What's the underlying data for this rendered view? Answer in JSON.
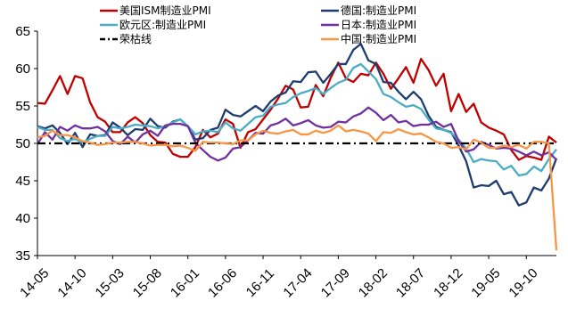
{
  "chart_data": {
    "type": "line",
    "title": "",
    "xlabel": "",
    "ylabel": "",
    "ylim": [
      35,
      65
    ],
    "yticks": [
      35,
      40,
      45,
      50,
      55,
      60,
      65
    ],
    "x": [
      "14-05",
      "14-06",
      "14-07",
      "14-08",
      "14-09",
      "14-10",
      "14-11",
      "14-12",
      "15-01",
      "15-02",
      "15-03",
      "15-04",
      "15-05",
      "15-06",
      "15-07",
      "15-08",
      "15-09",
      "15-10",
      "15-11",
      "15-12",
      "16-01",
      "16-02",
      "16-03",
      "16-04",
      "16-05",
      "16-06",
      "16-07",
      "16-08",
      "16-09",
      "16-10",
      "16-11",
      "16-12",
      "17-01",
      "17-02",
      "17-03",
      "17-04",
      "17-05",
      "17-06",
      "17-07",
      "17-08",
      "17-09",
      "17-10",
      "17-11",
      "17-12",
      "18-01",
      "18-02",
      "18-03",
      "18-04",
      "18-05",
      "18-06",
      "18-07",
      "18-08",
      "18-09",
      "18-10",
      "18-11",
      "18-12",
      "19-01",
      "19-02",
      "19-03",
      "19-04",
      "19-05",
      "19-06",
      "19-07",
      "19-08",
      "19-09",
      "19-10",
      "19-11",
      "19-12",
      "20-01",
      "20-02"
    ],
    "x_tick_labels": [
      "14-05",
      "14-10",
      "15-03",
      "15-08",
      "16-01",
      "16-06",
      "16-11",
      "17-04",
      "17-09",
      "18-02",
      "18-07",
      "18-12",
      "19-05",
      "19-10"
    ],
    "grid": false,
    "legend_position": "top",
    "series": [
      {
        "name": "美国ISM制造业PMI",
        "color": "#c00000",
        "style": "solid",
        "values": [
          55.4,
          55.3,
          57.1,
          59.0,
          56.6,
          59.0,
          58.7,
          55.5,
          53.5,
          52.9,
          51.5,
          51.5,
          52.8,
          53.5,
          52.7,
          51.1,
          50.2,
          50.1,
          48.6,
          48.2,
          48.2,
          49.5,
          51.8,
          50.8,
          51.3,
          53.2,
          52.6,
          49.4,
          51.5,
          51.9,
          53.2,
          54.5,
          56.0,
          57.7,
          57.2,
          54.8,
          54.9,
          57.8,
          56.3,
          58.8,
          60.8,
          58.7,
          58.2,
          59.3,
          59.1,
          60.8,
          59.3,
          57.3,
          58.7,
          60.2,
          58.1,
          61.3,
          59.8,
          57.7,
          59.3,
          54.3,
          56.6,
          54.2,
          55.3,
          52.8,
          52.1,
          51.7,
          51.2,
          49.1,
          47.8,
          48.3,
          48.1,
          47.8,
          50.9,
          50.1
        ]
      },
      {
        "name": "德国:制造业PMI",
        "color": "#1f3c6e",
        "style": "solid",
        "values": [
          52.3,
          52.0,
          52.4,
          51.4,
          49.9,
          51.4,
          49.5,
          51.2,
          51.0,
          51.1,
          52.8,
          52.1,
          51.1,
          51.9,
          51.8,
          53.3,
          52.3,
          52.1,
          52.9,
          53.2,
          52.3,
          50.5,
          50.7,
          51.8,
          52.1,
          54.5,
          53.8,
          53.6,
          54.3,
          55.0,
          54.3,
          55.6,
          56.4,
          56.8,
          58.3,
          58.2,
          59.5,
          59.6,
          58.1,
          59.3,
          60.6,
          60.6,
          62.5,
          63.3,
          61.1,
          60.6,
          58.2,
          58.1,
          56.9,
          55.9,
          56.9,
          55.9,
          53.7,
          52.2,
          51.8,
          51.5,
          49.7,
          47.6,
          44.1,
          44.4,
          44.3,
          45.0,
          43.2,
          43.5,
          41.7,
          42.1,
          44.1,
          43.7,
          45.3,
          48.0
        ]
      },
      {
        "name": "欧元区:制造业PMI",
        "color": "#4bacc6",
        "style": "solid",
        "values": [
          52.2,
          51.8,
          51.8,
          50.7,
          50.3,
          50.6,
          50.1,
          50.6,
          51.0,
          51.0,
          52.2,
          52.0,
          52.2,
          52.5,
          52.4,
          52.3,
          52.0,
          52.3,
          52.8,
          53.2,
          52.3,
          51.2,
          51.6,
          51.7,
          51.5,
          52.8,
          52.0,
          51.7,
          52.6,
          53.5,
          53.7,
          54.9,
          55.2,
          55.4,
          56.2,
          56.7,
          57.0,
          57.4,
          56.6,
          57.4,
          58.1,
          58.5,
          60.1,
          60.6,
          59.6,
          58.6,
          56.6,
          56.2,
          55.5,
          54.9,
          55.1,
          54.6,
          53.2,
          52.0,
          51.8,
          51.4,
          50.5,
          49.3,
          47.5,
          47.9,
          47.7,
          47.6,
          46.5,
          47.0,
          45.7,
          45.9,
          46.9,
          46.3,
          47.9,
          49.2
        ]
      },
      {
        "name": "日本:制造业PMI",
        "color": "#7030a0",
        "style": "solid",
        "values": [
          49.9,
          51.5,
          50.5,
          52.2,
          51.7,
          52.4,
          52.0,
          52.0,
          52.2,
          51.6,
          50.3,
          49.9,
          50.9,
          50.1,
          51.2,
          51.7,
          51.0,
          52.4,
          52.6,
          52.6,
          52.3,
          50.1,
          49.1,
          48.2,
          47.7,
          48.1,
          49.3,
          49.5,
          50.4,
          51.4,
          51.3,
          52.4,
          52.7,
          53.3,
          52.4,
          52.7,
          53.1,
          52.4,
          52.1,
          52.2,
          52.9,
          52.8,
          53.6,
          54.0,
          54.8,
          54.1,
          53.1,
          53.8,
          52.8,
          53.0,
          52.3,
          52.5,
          52.5,
          52.9,
          52.2,
          52.6,
          50.3,
          48.9,
          49.2,
          50.2,
          49.8,
          49.3,
          49.4,
          49.3,
          48.9,
          48.4,
          48.9,
          48.4,
          48.8,
          47.8
        ]
      },
      {
        "name": "荣枯线",
        "color": "#000000",
        "style": "dashdot",
        "values": [
          50,
          50,
          50,
          50,
          50,
          50,
          50,
          50,
          50,
          50,
          50,
          50,
          50,
          50,
          50,
          50,
          50,
          50,
          50,
          50,
          50,
          50,
          50,
          50,
          50,
          50,
          50,
          50,
          50,
          50,
          50,
          50,
          50,
          50,
          50,
          50,
          50,
          50,
          50,
          50,
          50,
          50,
          50,
          50,
          50,
          50,
          50,
          50,
          50,
          50,
          50,
          50,
          50,
          50,
          50,
          50,
          50,
          50,
          50,
          50,
          50,
          50,
          50,
          50,
          50,
          50,
          50,
          50,
          50,
          50
        ]
      },
      {
        "name": "中国:制造业PMI",
        "color": "#f79646",
        "style": "solid",
        "values": [
          50.8,
          51.0,
          51.7,
          51.1,
          51.1,
          50.8,
          50.3,
          50.1,
          49.8,
          49.9,
          50.1,
          50.1,
          50.2,
          50.2,
          50.0,
          49.7,
          49.8,
          49.8,
          49.6,
          49.7,
          49.4,
          49.0,
          50.2,
          50.1,
          50.1,
          50.0,
          49.9,
          50.4,
          50.4,
          51.2,
          51.7,
          51.4,
          51.3,
          51.6,
          51.8,
          51.2,
          51.2,
          51.7,
          51.4,
          51.7,
          52.4,
          51.6,
          51.8,
          51.6,
          51.3,
          50.3,
          51.5,
          51.4,
          51.9,
          51.5,
          51.2,
          51.3,
          50.8,
          50.2,
          50.0,
          49.4,
          49.5,
          49.2,
          50.5,
          50.1,
          49.4,
          49.4,
          49.7,
          49.5,
          49.8,
          49.3,
          50.2,
          50.2,
          50.0,
          35.7
        ]
      }
    ]
  }
}
